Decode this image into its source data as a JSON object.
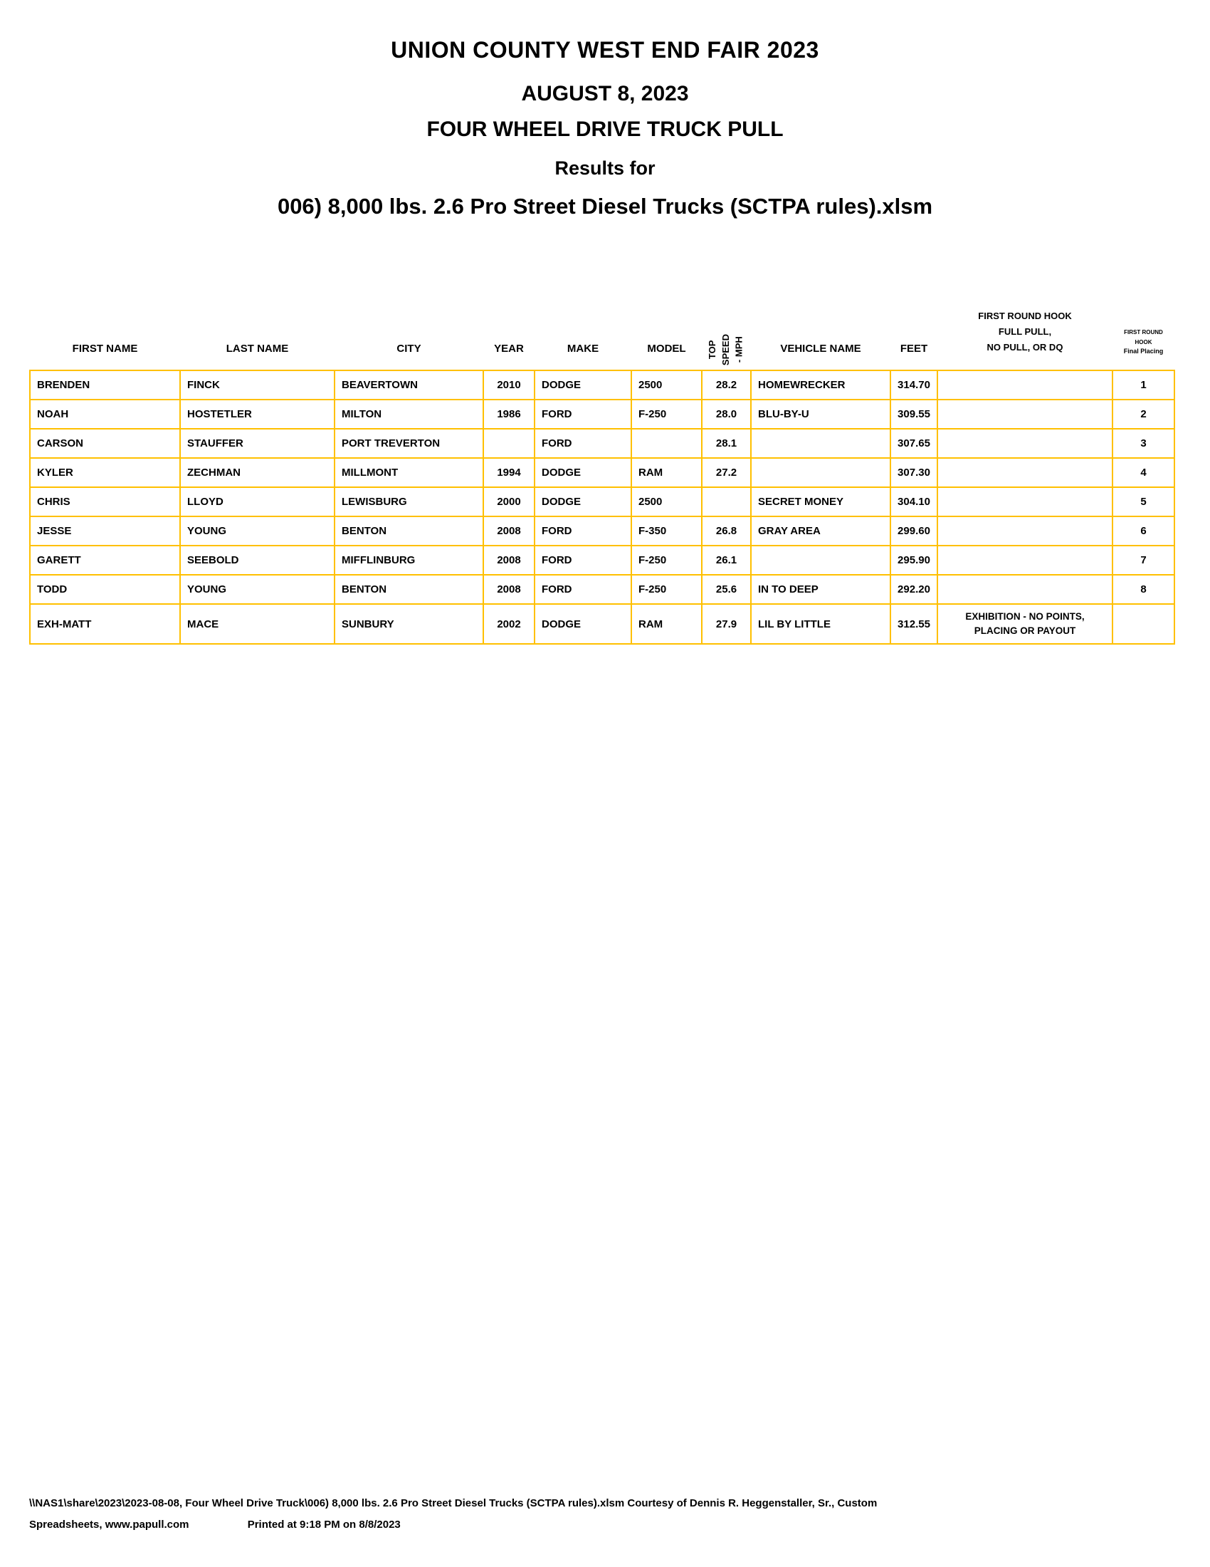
{
  "page": {
    "title_lines": [
      "UNION COUNTY WEST END FAIR 2023",
      "AUGUST 8, 2023",
      "FOUR WHEEL DRIVE TRUCK PULL",
      "Results for",
      "006) 8,000 lbs. 2.6 Pro Street Diesel Trucks (SCTPA rules).xlsm"
    ]
  },
  "colors": {
    "table_border": "#FFC000",
    "text": "#000000",
    "background": "#FFFFFF"
  },
  "table": {
    "headers": {
      "first_name": "FIRST NAME",
      "last_name": "LAST NAME",
      "city": "CITY",
      "year": "YEAR",
      "make": "MAKE",
      "model": "MODEL",
      "top_speed": "TOP\nSPEED\n- MPH",
      "vehicle_name": "VEHICLE NAME",
      "feet": "FEET",
      "first_round_hook": "FIRST ROUND HOOK\nFULL PULL,\nNO PULL, OR DQ",
      "final_placing_top": "FIRST ROUND\nHOOK",
      "final_placing_bottom": "Final Placing"
    },
    "rows": [
      {
        "first_name": "BRENDEN",
        "last_name": "FINCK",
        "city": "BEAVERTOWN",
        "year": "2010",
        "make": "DODGE",
        "model": "2500",
        "top_speed": "28.2",
        "vehicle_name": "HOMEWRECKER",
        "feet": "314.70",
        "hook": "",
        "placing": "1",
        "exhibition": false
      },
      {
        "first_name": "NOAH",
        "last_name": "HOSTETLER",
        "city": "MILTON",
        "year": "1986",
        "make": "FORD",
        "model": "F-250",
        "top_speed": "28.0",
        "vehicle_name": "BLU-BY-U",
        "feet": "309.55",
        "hook": "",
        "placing": "2",
        "exhibition": false
      },
      {
        "first_name": "CARSON",
        "last_name": "STAUFFER",
        "city": "PORT TREVERTON",
        "year": "",
        "make": "FORD",
        "model": "",
        "top_speed": "28.1",
        "vehicle_name": "",
        "feet": "307.65",
        "hook": "",
        "placing": "3",
        "exhibition": false
      },
      {
        "first_name": "KYLER",
        "last_name": "ZECHMAN",
        "city": "MILLMONT",
        "year": "1994",
        "make": "DODGE",
        "model": "RAM",
        "top_speed": "27.2",
        "vehicle_name": "",
        "feet": "307.30",
        "hook": "",
        "placing": "4",
        "exhibition": false
      },
      {
        "first_name": "CHRIS",
        "last_name": "LLOYD",
        "city": "LEWISBURG",
        "year": "2000",
        "make": "DODGE",
        "model": "2500",
        "top_speed": "",
        "vehicle_name": "SECRET MONEY",
        "feet": "304.10",
        "hook": "",
        "placing": "5",
        "exhibition": false
      },
      {
        "first_name": "JESSE",
        "last_name": "YOUNG",
        "city": "BENTON",
        "year": "2008",
        "make": "FORD",
        "model": "F-350",
        "top_speed": "26.8",
        "vehicle_name": "GRAY AREA",
        "feet": "299.60",
        "hook": "",
        "placing": "6",
        "exhibition": false
      },
      {
        "first_name": "GARETT",
        "last_name": "SEEBOLD",
        "city": "MIFFLINBURG",
        "year": "2008",
        "make": "FORD",
        "model": "F-250",
        "top_speed": "26.1",
        "vehicle_name": "",
        "feet": "295.90",
        "hook": "",
        "placing": "7",
        "exhibition": false
      },
      {
        "first_name": "TODD",
        "last_name": "YOUNG",
        "city": "BENTON",
        "year": "2008",
        "make": "FORD",
        "model": "F-250",
        "top_speed": "25.6",
        "vehicle_name": "IN TO DEEP",
        "feet": "292.20",
        "hook": "",
        "placing": "8",
        "exhibition": false
      },
      {
        "first_name": "EXH-MATT",
        "last_name": "MACE",
        "city": "SUNBURY",
        "year": "2002",
        "make": "DODGE",
        "model": "RAM",
        "top_speed": "27.9",
        "vehicle_name": "LIL BY LITTLE",
        "feet": "312.55",
        "hook": "EXHIBITION - NO POINTS,\nPLACING OR PAYOUT",
        "placing": "",
        "exhibition": true
      }
    ]
  },
  "footer": {
    "line1": "\\\\NAS1\\share\\2023\\2023-08-08, Four Wheel Drive Truck\\006) 8,000 lbs. 2.6 Pro Street Diesel Trucks (SCTPA rules).xlsm  Courtesy of Dennis R. Heggenstaller, Sr., Custom",
    "line2_left": "Spreadsheets, www.papull.com",
    "line2_right": "Printed at 9:18 PM on 8/8/2023"
  }
}
